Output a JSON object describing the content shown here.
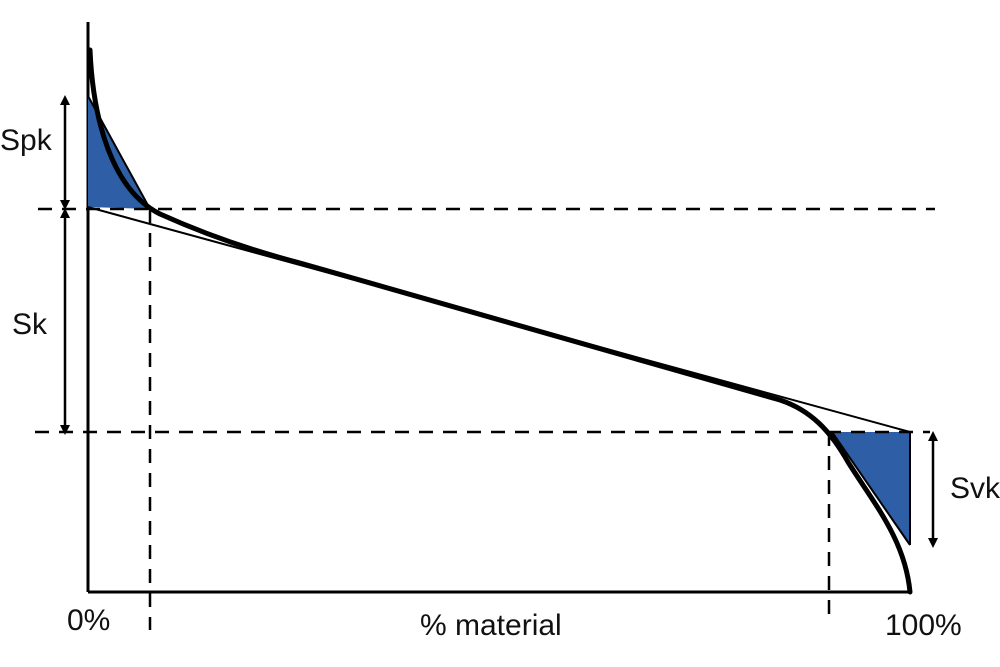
{
  "labels": {
    "spk": "Spk",
    "sk": "Sk",
    "svk": "Svk",
    "x_start": "0%",
    "x_end": "100%",
    "x_axis": "% material"
  },
  "colors": {
    "fill": "#2e5fa6",
    "line": "#000000"
  }
}
